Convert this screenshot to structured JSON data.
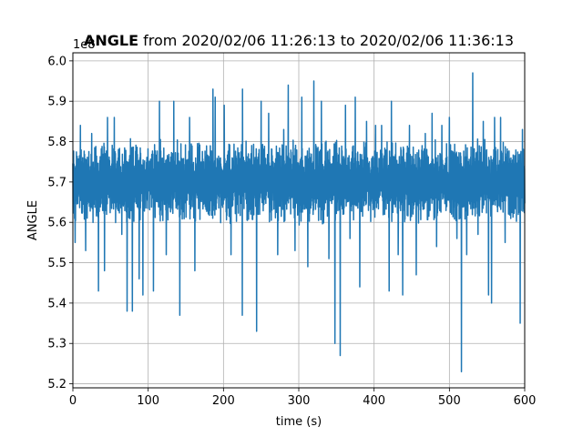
{
  "chart_data": {
    "type": "line",
    "title_bold": "ANGLE",
    "title_rest": " from 2020/02/06 11:26:13 to 2020/02/06 11:36:13",
    "xlabel": "time (s)",
    "ylabel": "ANGLE",
    "offset_label": "1e8",
    "xlim": [
      0,
      600
    ],
    "ylim": [
      5.19,
      6.02
    ],
    "xticks": [
      0,
      100,
      200,
      300,
      400,
      500,
      600
    ],
    "yticks": [
      5.2,
      5.3,
      5.4,
      5.5,
      5.6,
      5.7,
      5.8,
      5.9,
      6.0
    ],
    "grid": true,
    "line_color": "#1f77b4",
    "band": {
      "center": 5.7,
      "half_width": 0.11
    },
    "spikes": [
      {
        "x": 3,
        "y": 5.55
      },
      {
        "x": 10,
        "y": 5.84
      },
      {
        "x": 17,
        "y": 5.53
      },
      {
        "x": 25,
        "y": 5.82
      },
      {
        "x": 34,
        "y": 5.43
      },
      {
        "x": 42,
        "y": 5.48
      },
      {
        "x": 46,
        "y": 5.86
      },
      {
        "x": 55,
        "y": 5.86
      },
      {
        "x": 65,
        "y": 5.57
      },
      {
        "x": 72,
        "y": 5.38
      },
      {
        "x": 79,
        "y": 5.38
      },
      {
        "x": 88,
        "y": 5.46
      },
      {
        "x": 93,
        "y": 5.42
      },
      {
        "x": 107,
        "y": 5.43
      },
      {
        "x": 115,
        "y": 5.9
      },
      {
        "x": 124,
        "y": 5.52
      },
      {
        "x": 134,
        "y": 5.9
      },
      {
        "x": 142,
        "y": 5.37
      },
      {
        "x": 155,
        "y": 5.86
      },
      {
        "x": 162,
        "y": 5.48
      },
      {
        "x": 186,
        "y": 5.93
      },
      {
        "x": 189,
        "y": 5.91
      },
      {
        "x": 201,
        "y": 5.89
      },
      {
        "x": 210,
        "y": 5.52
      },
      {
        "x": 225,
        "y": 5.37
      },
      {
        "x": 225,
        "y": 5.93
      },
      {
        "x": 244,
        "y": 5.33
      },
      {
        "x": 250,
        "y": 5.9
      },
      {
        "x": 260,
        "y": 5.87
      },
      {
        "x": 272,
        "y": 5.52
      },
      {
        "x": 280,
        "y": 5.83
      },
      {
        "x": 286,
        "y": 5.94
      },
      {
        "x": 295,
        "y": 5.53
      },
      {
        "x": 304,
        "y": 5.91
      },
      {
        "x": 312,
        "y": 5.49
      },
      {
        "x": 320,
        "y": 5.95
      },
      {
        "x": 330,
        "y": 5.9
      },
      {
        "x": 340,
        "y": 5.51
      },
      {
        "x": 348,
        "y": 5.3
      },
      {
        "x": 355,
        "y": 5.27
      },
      {
        "x": 362,
        "y": 5.89
      },
      {
        "x": 368,
        "y": 5.56
      },
      {
        "x": 375,
        "y": 5.91
      },
      {
        "x": 381,
        "y": 5.44
      },
      {
        "x": 390,
        "y": 5.85
      },
      {
        "x": 402,
        "y": 5.84
      },
      {
        "x": 410,
        "y": 5.84
      },
      {
        "x": 420,
        "y": 5.43
      },
      {
        "x": 423,
        "y": 5.9
      },
      {
        "x": 432,
        "y": 5.52
      },
      {
        "x": 438,
        "y": 5.42
      },
      {
        "x": 447,
        "y": 5.84
      },
      {
        "x": 456,
        "y": 5.47
      },
      {
        "x": 468,
        "y": 5.82
      },
      {
        "x": 477,
        "y": 5.87
      },
      {
        "x": 483,
        "y": 5.54
      },
      {
        "x": 490,
        "y": 5.84
      },
      {
        "x": 500,
        "y": 5.86
      },
      {
        "x": 510,
        "y": 5.56
      },
      {
        "x": 516,
        "y": 5.23
      },
      {
        "x": 523,
        "y": 5.52
      },
      {
        "x": 531,
        "y": 5.97
      },
      {
        "x": 538,
        "y": 5.57
      },
      {
        "x": 545,
        "y": 5.85
      },
      {
        "x": 552,
        "y": 5.42
      },
      {
        "x": 556,
        "y": 5.4
      },
      {
        "x": 560,
        "y": 5.86
      },
      {
        "x": 568,
        "y": 5.86
      },
      {
        "x": 574,
        "y": 5.55
      },
      {
        "x": 594,
        "y": 5.35
      },
      {
        "x": 597,
        "y": 5.83
      }
    ]
  }
}
